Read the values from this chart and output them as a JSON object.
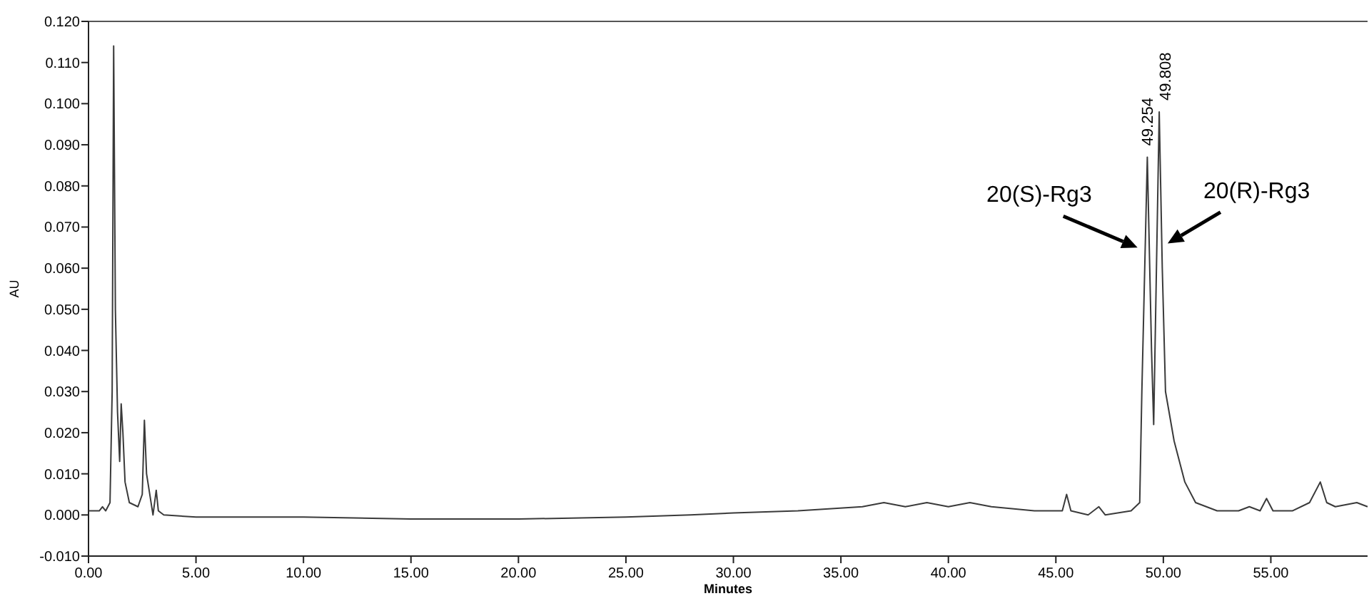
{
  "chart_data": {
    "type": "line",
    "xlabel": "Minutes",
    "ylabel": "AU",
    "xlim": [
      0,
      59.5
    ],
    "ylim": [
      -0.01,
      0.12
    ],
    "xticks": [
      {
        "value": 0,
        "label": "0.00"
      },
      {
        "value": 5,
        "label": "5.00"
      },
      {
        "value": 10,
        "label": "10.00"
      },
      {
        "value": 15,
        "label": "15.00"
      },
      {
        "value": 20,
        "label": "20.00"
      },
      {
        "value": 25,
        "label": "25.00"
      },
      {
        "value": 30,
        "label": "30.00"
      },
      {
        "value": 35,
        "label": "35.00"
      },
      {
        "value": 40,
        "label": "40.00"
      },
      {
        "value": 45,
        "label": "45.00"
      },
      {
        "value": 50,
        "label": "50.00"
      },
      {
        "value": 55,
        "label": "55.00"
      }
    ],
    "yticks": [
      {
        "value": -0.01,
        "label": "-0.010"
      },
      {
        "value": 0,
        "label": "0.000"
      },
      {
        "value": 0.01,
        "label": "0.010"
      },
      {
        "value": 0.02,
        "label": "0.020"
      },
      {
        "value": 0.03,
        "label": "0.030"
      },
      {
        "value": 0.04,
        "label": "0.040"
      },
      {
        "value": 0.05,
        "label": "0.050"
      },
      {
        "value": 0.06,
        "label": "0.060"
      },
      {
        "value": 0.07,
        "label": "0.070"
      },
      {
        "value": 0.08,
        "label": "0.080"
      },
      {
        "value": 0.09,
        "label": "0.090"
      },
      {
        "value": 0.1,
        "label": "0.100"
      },
      {
        "value": 0.11,
        "label": "0.110"
      },
      {
        "value": 0.12,
        "label": "0.120"
      }
    ],
    "grid": false,
    "marker": "none",
    "line_style": "solid",
    "series": [
      {
        "color": "#3a3a3a",
        "x": [
          0,
          0.5,
          0.65,
          0.8,
          1.0,
          1.1,
          1.17,
          1.25,
          1.35,
          1.45,
          1.52,
          1.6,
          1.7,
          1.9,
          2.3,
          2.5,
          2.6,
          2.7,
          2.85,
          3.0,
          3.15,
          3.25,
          3.5,
          5,
          10,
          15,
          20,
          25,
          28,
          30,
          33,
          36,
          37,
          38,
          39,
          40,
          41,
          42,
          44,
          45.3,
          45.5,
          45.7,
          46.5,
          47,
          47.3,
          48.5,
          48.9,
          49.0,
          49.254,
          49.45,
          49.55,
          49.808,
          49.95,
          50.1,
          50.5,
          51,
          51.5,
          52.5,
          53.5,
          54,
          54.5,
          54.8,
          55.1,
          56,
          56.8,
          57.3,
          57.6,
          58,
          59,
          59.5
        ],
        "values": [
          0.001,
          0.001,
          0.002,
          0.001,
          0.003,
          0.03,
          0.114,
          0.05,
          0.025,
          0.013,
          0.027,
          0.02,
          0.008,
          0.003,
          0.002,
          0.005,
          0.023,
          0.01,
          0.005,
          0,
          0.006,
          0.001,
          0,
          -0.0005,
          -0.0005,
          -0.001,
          -0.001,
          -0.0005,
          0,
          0.0005,
          0.001,
          0.002,
          0.003,
          0.002,
          0.003,
          0.002,
          0.003,
          0.002,
          0.001,
          0.001,
          0.005,
          0.001,
          0,
          0.002,
          0,
          0.001,
          0.003,
          0.03,
          0.087,
          0.04,
          0.022,
          0.098,
          0.06,
          0.03,
          0.018,
          0.008,
          0.003,
          0.001,
          0.001,
          0.002,
          0.001,
          0.004,
          0.001,
          0.001,
          0.003,
          0.008,
          0.003,
          0.002,
          0.003,
          0.002
        ]
      }
    ],
    "annotations": [
      {
        "text": "49.254",
        "x": 49.254,
        "y": 0.087
      },
      {
        "text": "49.808",
        "x": 49.808,
        "y": 0.098
      },
      {
        "text": "20(S)-Rg3",
        "x": 48.8,
        "y": 0.065
      },
      {
        "text": "20(R)-Rg3",
        "x": 50.2,
        "y": 0.066
      }
    ]
  }
}
